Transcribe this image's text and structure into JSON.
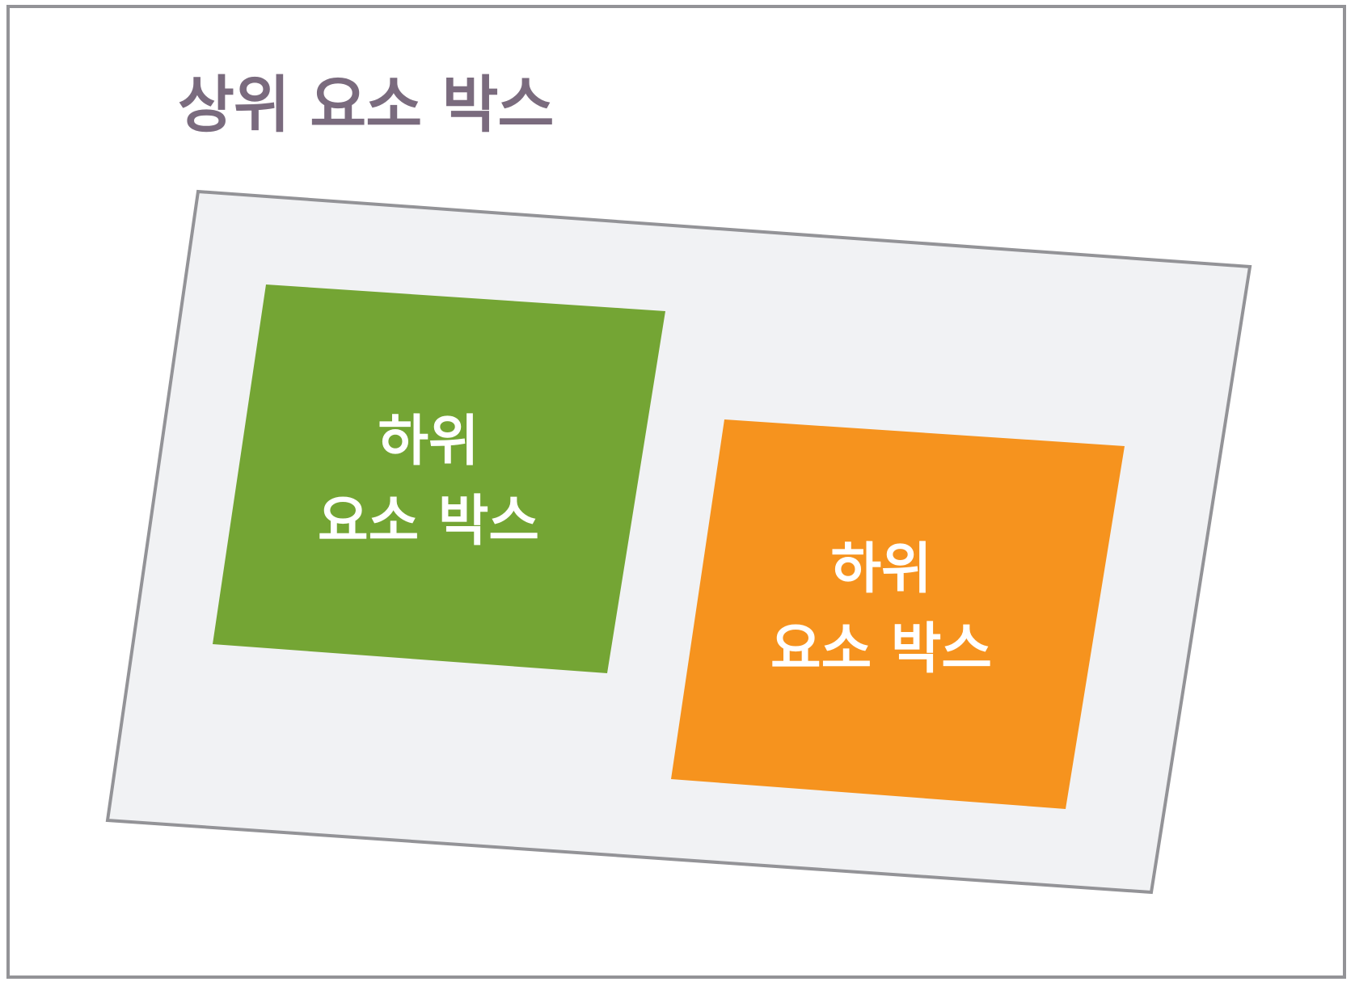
{
  "diagram": {
    "parent": {
      "label": "상위 요소 박스",
      "fill": "#f1f2f4",
      "stroke": "#939397",
      "label_color": "#7a6b7e"
    },
    "children": [
      {
        "line1": "하위",
        "line2": "요소 박스",
        "fill": "#74a534",
        "text_color": "#ffffff"
      },
      {
        "line1": "하위",
        "line2": "요소 박스",
        "fill": "#f6931e",
        "text_color": "#ffffff"
      }
    ]
  }
}
